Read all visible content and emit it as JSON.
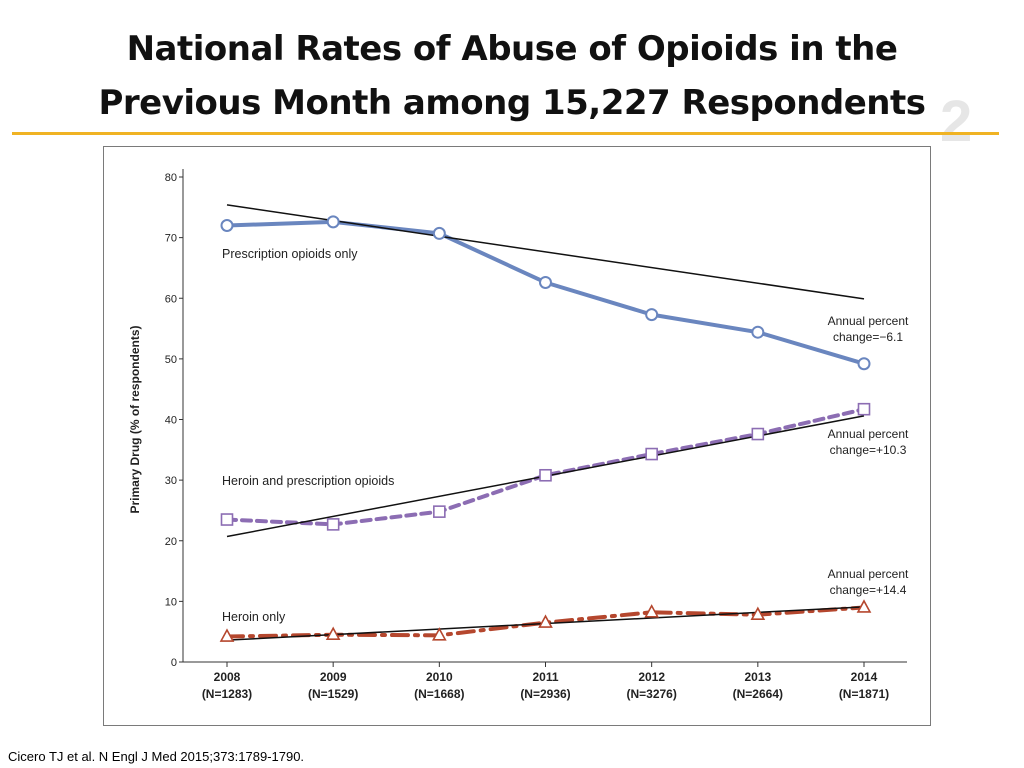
{
  "slide": {
    "title_line1": "National Rates of Abuse of Opioids in the",
    "title_line2": "Previous Month among 15,227 Respondents",
    "citation": "Cicero TJ et al. N Engl J Med 2015;373:1789-1790.",
    "accent_color": "#f0b323",
    "watermark": "2"
  },
  "chart_data": {
    "type": "line",
    "ylabel": "Primary Drug (% of respondents)",
    "ylim": [
      0,
      80
    ],
    "yticks": [
      0,
      10,
      20,
      30,
      40,
      50,
      60,
      70,
      80
    ],
    "categories": [
      {
        "year": "2008",
        "n": "(N=1283)"
      },
      {
        "year": "2009",
        "n": "(N=1529)"
      },
      {
        "year": "2010",
        "n": "(N=1668)"
      },
      {
        "year": "2011",
        "n": "(N=2936)"
      },
      {
        "year": "2012",
        "n": "(N=3276)"
      },
      {
        "year": "2013",
        "n": "(N=2664)"
      },
      {
        "year": "2014",
        "n": "(N=1871)"
      }
    ],
    "series": [
      {
        "name": "Prescription opioids only",
        "values": [
          72.0,
          72.6,
          70.7,
          62.6,
          57.3,
          54.4,
          49.2
        ],
        "color": "#6a86bf",
        "marker": "circle",
        "dash": "solid",
        "trend": [
          75.4,
          59.9
        ],
        "annotation_line1": "Annual percent",
        "annotation_line2": "change=−6.1"
      },
      {
        "name": "Heroin and prescription opioids",
        "values": [
          23.5,
          22.7,
          24.8,
          30.8,
          34.3,
          37.6,
          41.7
        ],
        "color": "#8c6db3",
        "marker": "square",
        "dash": "dashed",
        "trend": [
          20.7,
          40.6
        ],
        "annotation_line1": "Annual percent",
        "annotation_line2": "change=+10.3"
      },
      {
        "name": "Heroin only",
        "values": [
          4.2,
          4.5,
          4.4,
          6.5,
          8.2,
          7.8,
          9.0
        ],
        "color": "#b5472e",
        "marker": "triangle",
        "dash": "dashdot",
        "trend": [
          3.6,
          9.1
        ],
        "annotation_line1": "Annual percent",
        "annotation_line2": "change=+14.4"
      }
    ]
  }
}
